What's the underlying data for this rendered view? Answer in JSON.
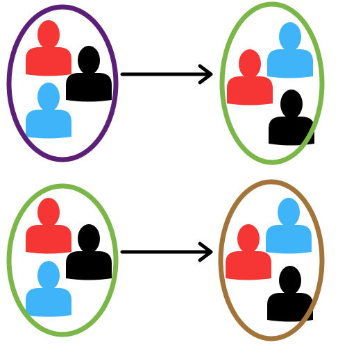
{
  "colors": {
    "background": "#ffffff",
    "arrow": "#000000",
    "purple": "#5c1f78",
    "green": "#7ab648",
    "brown": "#a3743a",
    "person_red": "#f63535",
    "person_black": "#000000",
    "person_blue": "#3fb4f8"
  },
  "rows": [
    {
      "name": "row-1",
      "source_group": {
        "outline": "purple",
        "members": [
          "person_red",
          "person_black",
          "person_blue"
        ]
      },
      "arrow_icon": "right-arrow-icon",
      "target_group": {
        "outline": "green",
        "members": [
          "person_red",
          "person_blue",
          "person_black"
        ]
      }
    },
    {
      "name": "row-2",
      "source_group": {
        "outline": "green",
        "members": [
          "person_red",
          "person_black",
          "person_blue"
        ]
      },
      "arrow_icon": "right-arrow-icon",
      "target_group": {
        "outline": "brown",
        "members": [
          "person_red",
          "person_blue",
          "person_black"
        ]
      }
    }
  ]
}
